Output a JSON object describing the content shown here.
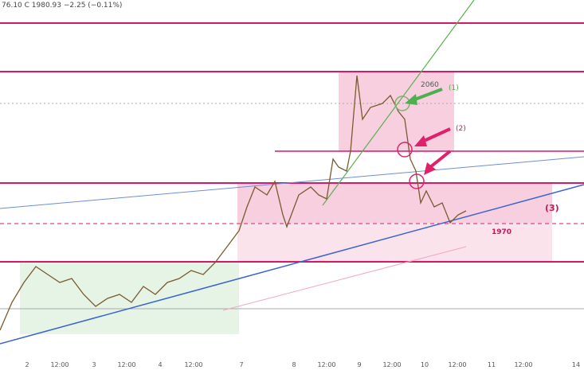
{
  "header": {
    "ohlc_text": "76.10 C 1980.93 −2.25 (−0.11%)"
  },
  "annotations": {
    "level_upper": "2060",
    "level_lower": "1970",
    "label_1": "(1)",
    "label_2": "(2)",
    "label_3": "(3)"
  },
  "x_axis": {
    "labels": [
      "2",
      "12:00",
      "3",
      "12:00",
      "4",
      "12:00",
      "7",
      "8",
      "12:00",
      "9",
      "12:00",
      "10",
      "12:00",
      "11",
      "12:00",
      "14"
    ]
  }
}
